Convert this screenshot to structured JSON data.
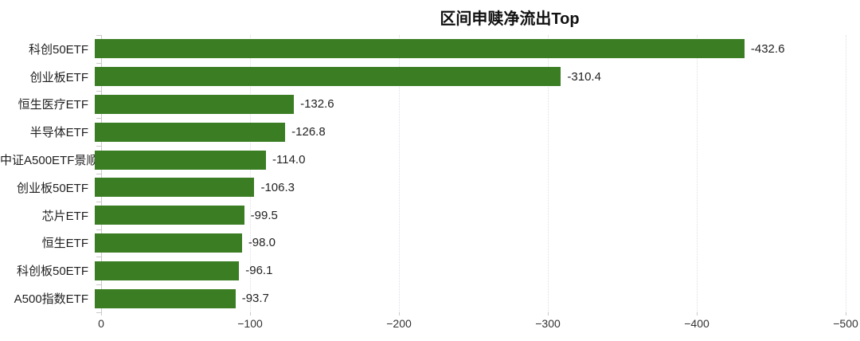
{
  "chart_data": {
    "type": "bar",
    "orientation": "horizontal",
    "title": "区间申赎净流出Top",
    "categories": [
      "科创50ETF",
      "创业板ETF",
      "恒生医疗ETF",
      "半导体ETF",
      "中证A500ETF景顺",
      "创业板50ETF",
      "芯片ETF",
      "恒生ETF",
      "科创板50ETF",
      "A500指数ETF"
    ],
    "values": [
      -432.6,
      -310.4,
      -132.6,
      -126.8,
      -114.0,
      -106.3,
      -99.5,
      -98.0,
      -96.1,
      -93.7
    ],
    "value_labels": [
      "-432.6",
      "-310.4",
      "-132.6",
      "-126.8",
      "-114.0",
      "-106.3",
      "-99.5",
      "-98.0",
      "-96.1",
      "-93.7"
    ],
    "xlabel": "",
    "ylabel": "",
    "x_axis": {
      "min": 0,
      "max": -500,
      "reversed": true,
      "ticks": [
        0,
        -100,
        -200,
        -300,
        -400,
        -500
      ],
      "tick_labels": [
        "0",
        "−100",
        "−200",
        "−300",
        "−400",
        "−500"
      ]
    },
    "grid": "vertical-dotted",
    "legend": "none",
    "colors": {
      "bar": "#3a7d23",
      "axis": "#c9c9c9",
      "gridline": "#dfdfe6",
      "title_text": "#111111",
      "category_text": "#1f1f1f",
      "value_text": "#222222",
      "tick_text": "#333333",
      "background": "#ffffff"
    }
  }
}
